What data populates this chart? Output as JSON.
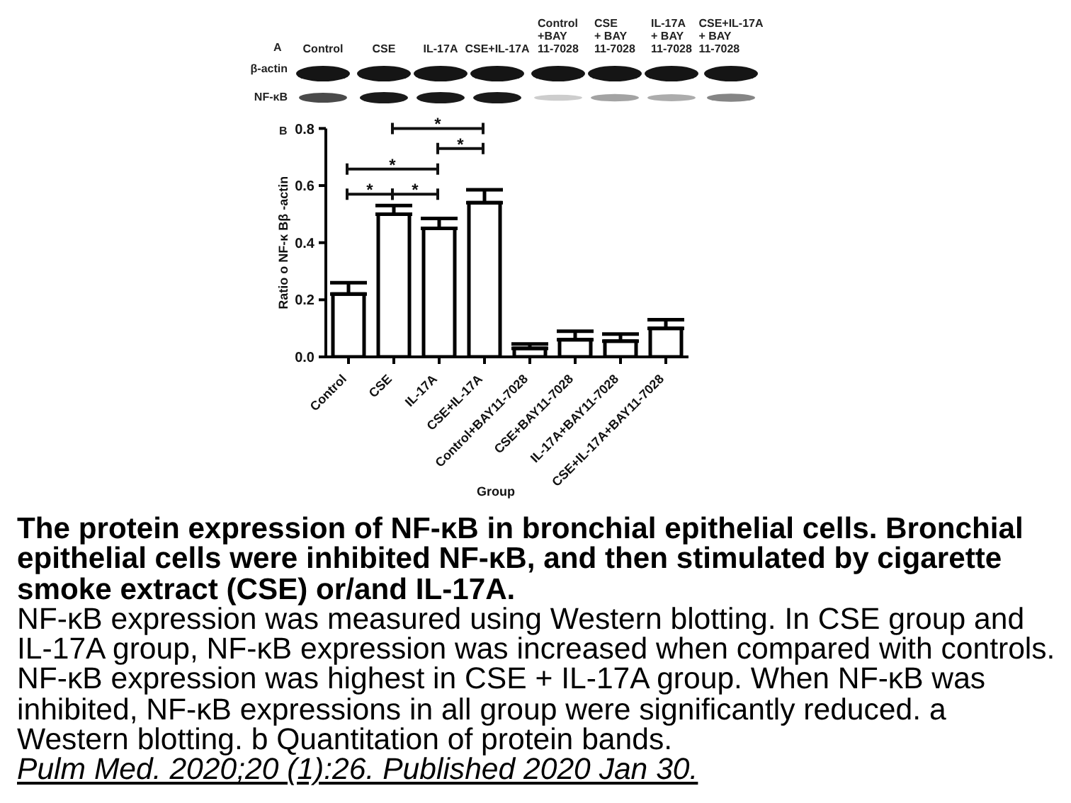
{
  "chart_data": {
    "type": "bar",
    "title": "The protein expression of NF-κB in bronchial epithelial cells. Bronchial epithelial cells were inhibited NF-κB, and then stimulated by cigarette smoke extract (CSE) or/and IL-17A.",
    "xlabel": "Group",
    "ylabel": "Ratio o NF-κ Bβ -actin",
    "categories": [
      "Control",
      "CSE",
      "IL-17A",
      "CSE+IL-17A",
      "Control+BAY11-7028",
      "CSE+BAY11-7028",
      "IL-17A+BAY11-7028",
      "CSE+IL-17A+BAY11-7028"
    ],
    "values": [
      0.22,
      0.5,
      0.45,
      0.54,
      0.03,
      0.06,
      0.055,
      0.1
    ],
    "errors": [
      [
        0.22,
        0.26
      ],
      [
        0.5,
        0.53
      ],
      [
        0.45,
        0.485
      ],
      [
        0.54,
        0.585
      ],
      [
        0.03,
        0.045
      ],
      [
        0.06,
        0.09
      ],
      [
        0.055,
        0.08
      ],
      [
        0.1,
        0.13
      ]
    ],
    "color": "#ffffff",
    "ylim": [
      0,
      0.8
    ],
    "yticks": [
      {
        "value": 0,
        "label": "0.0"
      },
      0.2,
      0.4,
      0.6,
      0.8
    ],
    "annotations": [
      "A",
      "Control",
      "CSE",
      "IL-17A",
      "CSE+IL-17A",
      "Control\n+BAY\n11-7028",
      "CSE\n+ BAY\n11-7028",
      "IL-17A\n+ BAY\n11-7028",
      "CSE+IL-17A\n+ BAY\n11-7028",
      "β-actin",
      "NF-κB",
      "B",
      "*",
      "*",
      "*",
      "*",
      "*",
      "NF-κB expression was measured using Western blotting. In CSE group and IL-17A group, NF-κB expression was increased when compared with controls. NF-κB expression was highest in CSE + IL-17A group. When NF-κB was inhibited, NF-κB expressions in all group were significantly reduced. a Western blotting. b Quantitation of protein bands.",
      "Pulm Med. 2020;20 (1):26. Published 2020 Jan 30."
    ]
  }
}
